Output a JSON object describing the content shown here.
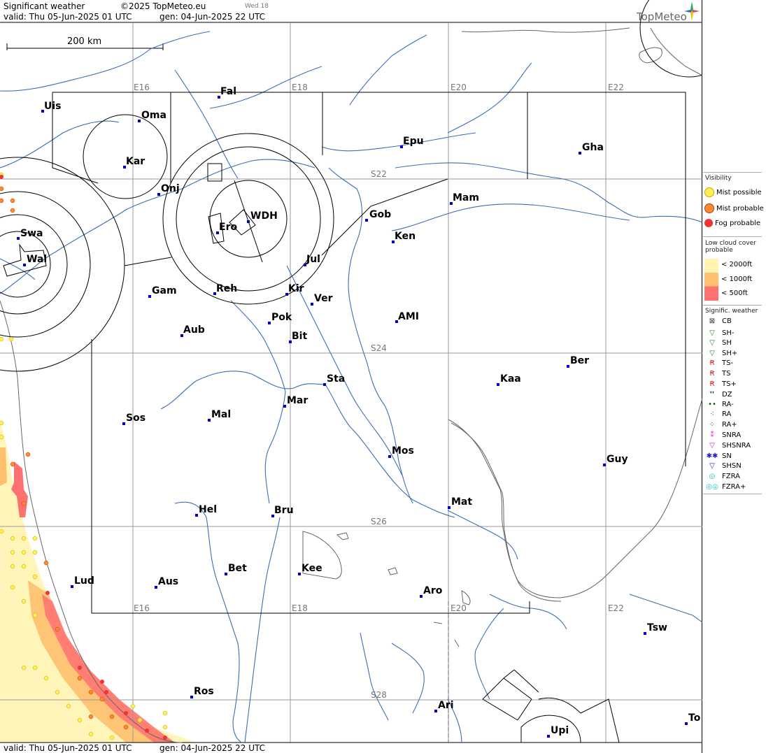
{
  "header": {
    "title": "Significant weather",
    "copyright": "©2025 TopMeteo.eu",
    "day": "Wed 18",
    "valid": "valid:  Thu  05-Jun-2025  01 UTC",
    "gen": "gen: 04-Jun-2025 22 UTC",
    "logo": "TopMeteo"
  },
  "scale": {
    "label": "200 km"
  },
  "grid": {
    "lon_top": [
      "E16",
      "E18",
      "E20",
      "E22"
    ],
    "lon_bottom": [
      "E16",
      "E18",
      "E20",
      "E22"
    ],
    "lat": [
      "S22",
      "S24",
      "S26",
      "S28"
    ]
  },
  "cities": [
    {
      "name": "Uis"
    },
    {
      "name": "Fal"
    },
    {
      "name": "Oma"
    },
    {
      "name": "Kar"
    },
    {
      "name": "Epu"
    },
    {
      "name": "Gha"
    },
    {
      "name": "Onj"
    },
    {
      "name": "Mam"
    },
    {
      "name": "Swa"
    },
    {
      "name": "Gob"
    },
    {
      "name": "WDH"
    },
    {
      "name": "Ero"
    },
    {
      "name": "Ken"
    },
    {
      "name": "Wal"
    },
    {
      "name": "Jul"
    },
    {
      "name": "Gam"
    },
    {
      "name": "Reh"
    },
    {
      "name": "Kir"
    },
    {
      "name": "Ver"
    },
    {
      "name": "AMI"
    },
    {
      "name": "Pok"
    },
    {
      "name": "Aub"
    },
    {
      "name": "Bit"
    },
    {
      "name": "Ber"
    },
    {
      "name": "Sta"
    },
    {
      "name": "Kaa"
    },
    {
      "name": "Mar"
    },
    {
      "name": "Sos"
    },
    {
      "name": "Mal"
    },
    {
      "name": "Mos"
    },
    {
      "name": "Guy"
    },
    {
      "name": "Mat"
    },
    {
      "name": "Hel"
    },
    {
      "name": "Bru"
    },
    {
      "name": "Bet"
    },
    {
      "name": "Kee"
    },
    {
      "name": "Lud"
    },
    {
      "name": "Aus"
    },
    {
      "name": "Aro"
    },
    {
      "name": "Tsw"
    },
    {
      "name": "Ros"
    },
    {
      "name": "Ari"
    },
    {
      "name": "Upi"
    },
    {
      "name": "To"
    }
  ],
  "footer": {
    "valid": "valid:  Thu  05-Jun-2025  01 UTC",
    "gen": "gen: 04-Jun-2025 22 UTC"
  },
  "legend": {
    "visibility_title": "Visibility",
    "visibility": [
      {
        "label": "Mist possible",
        "color": "#ffee55"
      },
      {
        "label": "Mist probable",
        "color": "#ff8833"
      },
      {
        "label": "Fog probable",
        "color": "#ee3333"
      }
    ],
    "cloud_title": "Low cloud cover probable",
    "cloud": [
      {
        "label": "< 2000ft",
        "color": "#fff4b0"
      },
      {
        "label": "< 1000ft",
        "color": "#ffc070"
      },
      {
        "label": "<   500ft",
        "color": "#ff7070"
      }
    ],
    "sigwx_title": "Signific. weather",
    "sigwx": [
      {
        "label": "CB",
        "symbol": "⊠",
        "color": "#333333"
      },
      {
        "label": "SH-",
        "symbol": "▽",
        "color": "#228822"
      },
      {
        "label": "SH",
        "symbol": "▽",
        "color": "#228822"
      },
      {
        "label": "SH+",
        "symbol": "▽",
        "color": "#228822"
      },
      {
        "label": "TS-",
        "symbol": "Ꞧ",
        "color": "#cc2222"
      },
      {
        "label": "TS",
        "symbol": "Ꞧ",
        "color": "#cc2222"
      },
      {
        "label": "TS+",
        "symbol": "Ꞧ",
        "color": "#cc2222"
      },
      {
        "label": "DZ",
        "symbol": "❜❜",
        "color": "#115511"
      },
      {
        "label": "RA-",
        "symbol": "••",
        "color": "#115511"
      },
      {
        "label": "RA",
        "symbol": "⁖",
        "color": "#115511"
      },
      {
        "label": "RA+",
        "symbol": "⁘",
        "color": "#115511"
      },
      {
        "label": "SNRA",
        "symbol": "⁑",
        "color": "#cc22cc"
      },
      {
        "label": "SHSNRA",
        "symbol": "▽",
        "color": "#cc22cc"
      },
      {
        "label": "SN",
        "symbol": "✱✱",
        "color": "#2222cc"
      },
      {
        "label": "SHSN",
        "symbol": "▽",
        "color": "#2222cc"
      },
      {
        "label": "FZRA",
        "symbol": "◎",
        "color": "#22bbbb"
      },
      {
        "label": "FZRA+",
        "symbol": "◎◎",
        "color": "#22bbbb"
      }
    ]
  }
}
